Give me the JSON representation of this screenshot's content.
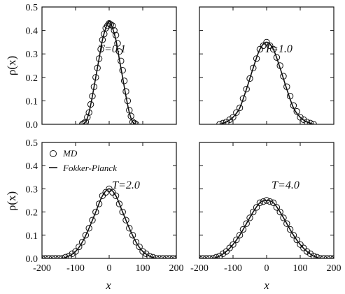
{
  "chart_data": {
    "type": "scatter",
    "layout": "2x2 grid of panels, shared axes",
    "xlabel": "x",
    "ylabel": "ρ(x)",
    "xlim": [
      -200,
      200
    ],
    "ylim": [
      0,
      0.5
    ],
    "xticks": [
      "-200",
      "-100",
      "0",
      "100",
      "200"
    ],
    "yticks": [
      "0.0",
      "0.1",
      "0.2",
      "0.3",
      "0.4",
      "0.5"
    ],
    "legend": {
      "placement": "top-left of lower-left panel",
      "entries": [
        {
          "name": "MD",
          "marker": "open-circle"
        },
        {
          "name": "Fokker-Planck",
          "marker": "line"
        }
      ]
    },
    "panels": [
      {
        "label": "T=0.1",
        "series": [
          {
            "name": "MD",
            "kind": "open-circle",
            "x": [
              -80,
              -70,
              -60,
              -50,
              -40,
              -30,
              -20,
              -10,
              0,
              10,
              20,
              30,
              40,
              50,
              60,
              70,
              80
            ],
            "y": [
              0.0,
              0.01,
              0.05,
              0.12,
              0.2,
              0.28,
              0.36,
              0.41,
              0.43,
              0.42,
              0.38,
              0.31,
              0.23,
              0.14,
              0.06,
              0.01,
              0.0
            ]
          },
          {
            "name": "Fokker-Planck",
            "kind": "line",
            "x": [
              -80,
              -70,
              -60,
              -50,
              -40,
              -30,
              -20,
              -10,
              0,
              10,
              20,
              30,
              40,
              50,
              60,
              70,
              80
            ],
            "y": [
              0.0,
              0.01,
              0.05,
              0.12,
              0.2,
              0.28,
              0.36,
              0.41,
              0.44,
              0.41,
              0.36,
              0.28,
              0.2,
              0.12,
              0.05,
              0.01,
              0.0
            ]
          }
        ]
      },
      {
        "label": "T=1.0",
        "series": [
          {
            "name": "MD",
            "kind": "open-circle",
            "x": [
              -140,
              -120,
              -100,
              -80,
              -60,
              -40,
              -20,
              0,
              20,
              40,
              60,
              80,
              100,
              120,
              140
            ],
            "y": [
              0.0,
              0.01,
              0.03,
              0.07,
              0.15,
              0.24,
              0.32,
              0.35,
              0.32,
              0.25,
              0.16,
              0.08,
              0.03,
              0.01,
              0.0
            ]
          },
          {
            "name": "Fokker-Planck",
            "kind": "line",
            "x": [
              -140,
              -120,
              -100,
              -80,
              -60,
              -40,
              -20,
              0,
              20,
              40,
              60,
              80,
              100,
              120,
              140
            ],
            "y": [
              0.0,
              0.01,
              0.03,
              0.07,
              0.15,
              0.24,
              0.32,
              0.35,
              0.32,
              0.24,
              0.15,
              0.07,
              0.03,
              0.01,
              0.0
            ]
          }
        ]
      },
      {
        "label": "T=2.0",
        "series": [
          {
            "name": "MD",
            "kind": "open-circle",
            "x": [
              -200,
              -180,
              -160,
              -140,
              -120,
              -100,
              -80,
              -60,
              -40,
              -20,
              0,
              20,
              40,
              60,
              80,
              100,
              120,
              140,
              160,
              180,
              200
            ],
            "y": [
              0.0,
              0.0,
              0.0,
              0.0,
              0.01,
              0.03,
              0.07,
              0.13,
              0.2,
              0.27,
              0.3,
              0.27,
              0.2,
              0.13,
              0.07,
              0.03,
              0.01,
              0.0,
              0.0,
              0.0,
              0.0
            ]
          },
          {
            "name": "Fokker-Planck",
            "kind": "line",
            "x": [
              -200,
              -180,
              -160,
              -140,
              -120,
              -100,
              -80,
              -60,
              -40,
              -20,
              0,
              20,
              40,
              60,
              80,
              100,
              120,
              140,
              160,
              180,
              200
            ],
            "y": [
              0.0,
              0.0,
              0.0,
              0.0,
              0.01,
              0.03,
              0.07,
              0.13,
              0.2,
              0.27,
              0.3,
              0.27,
              0.2,
              0.13,
              0.07,
              0.03,
              0.01,
              0.0,
              0.0,
              0.0,
              0.0
            ]
          }
        ]
      },
      {
        "label": "T=4.0",
        "series": [
          {
            "name": "MD",
            "kind": "open-circle",
            "x": [
              -200,
              -180,
              -160,
              -140,
              -120,
              -100,
              -80,
              -60,
              -40,
              -20,
              0,
              20,
              40,
              60,
              80,
              100,
              120,
              140,
              160,
              180,
              200
            ],
            "y": [
              0.0,
              0.0,
              0.0,
              0.01,
              0.03,
              0.06,
              0.1,
              0.15,
              0.2,
              0.24,
              0.25,
              0.24,
              0.2,
              0.15,
              0.1,
              0.06,
              0.03,
              0.01,
              0.0,
              0.0,
              0.0
            ]
          },
          {
            "name": "Fokker-Planck",
            "kind": "line",
            "x": [
              -200,
              -180,
              -160,
              -140,
              -120,
              -100,
              -80,
              -60,
              -40,
              -20,
              0,
              20,
              40,
              60,
              80,
              100,
              120,
              140,
              160,
              180,
              200
            ],
            "y": [
              0.0,
              0.0,
              0.0,
              0.01,
              0.03,
              0.06,
              0.1,
              0.15,
              0.2,
              0.24,
              0.25,
              0.24,
              0.2,
              0.15,
              0.1,
              0.06,
              0.03,
              0.01,
              0.0,
              0.0,
              0.0
            ]
          }
        ]
      }
    ],
    "colors": {
      "ink": "#111111",
      "background": "#ffffff"
    },
    "grid": false
  }
}
